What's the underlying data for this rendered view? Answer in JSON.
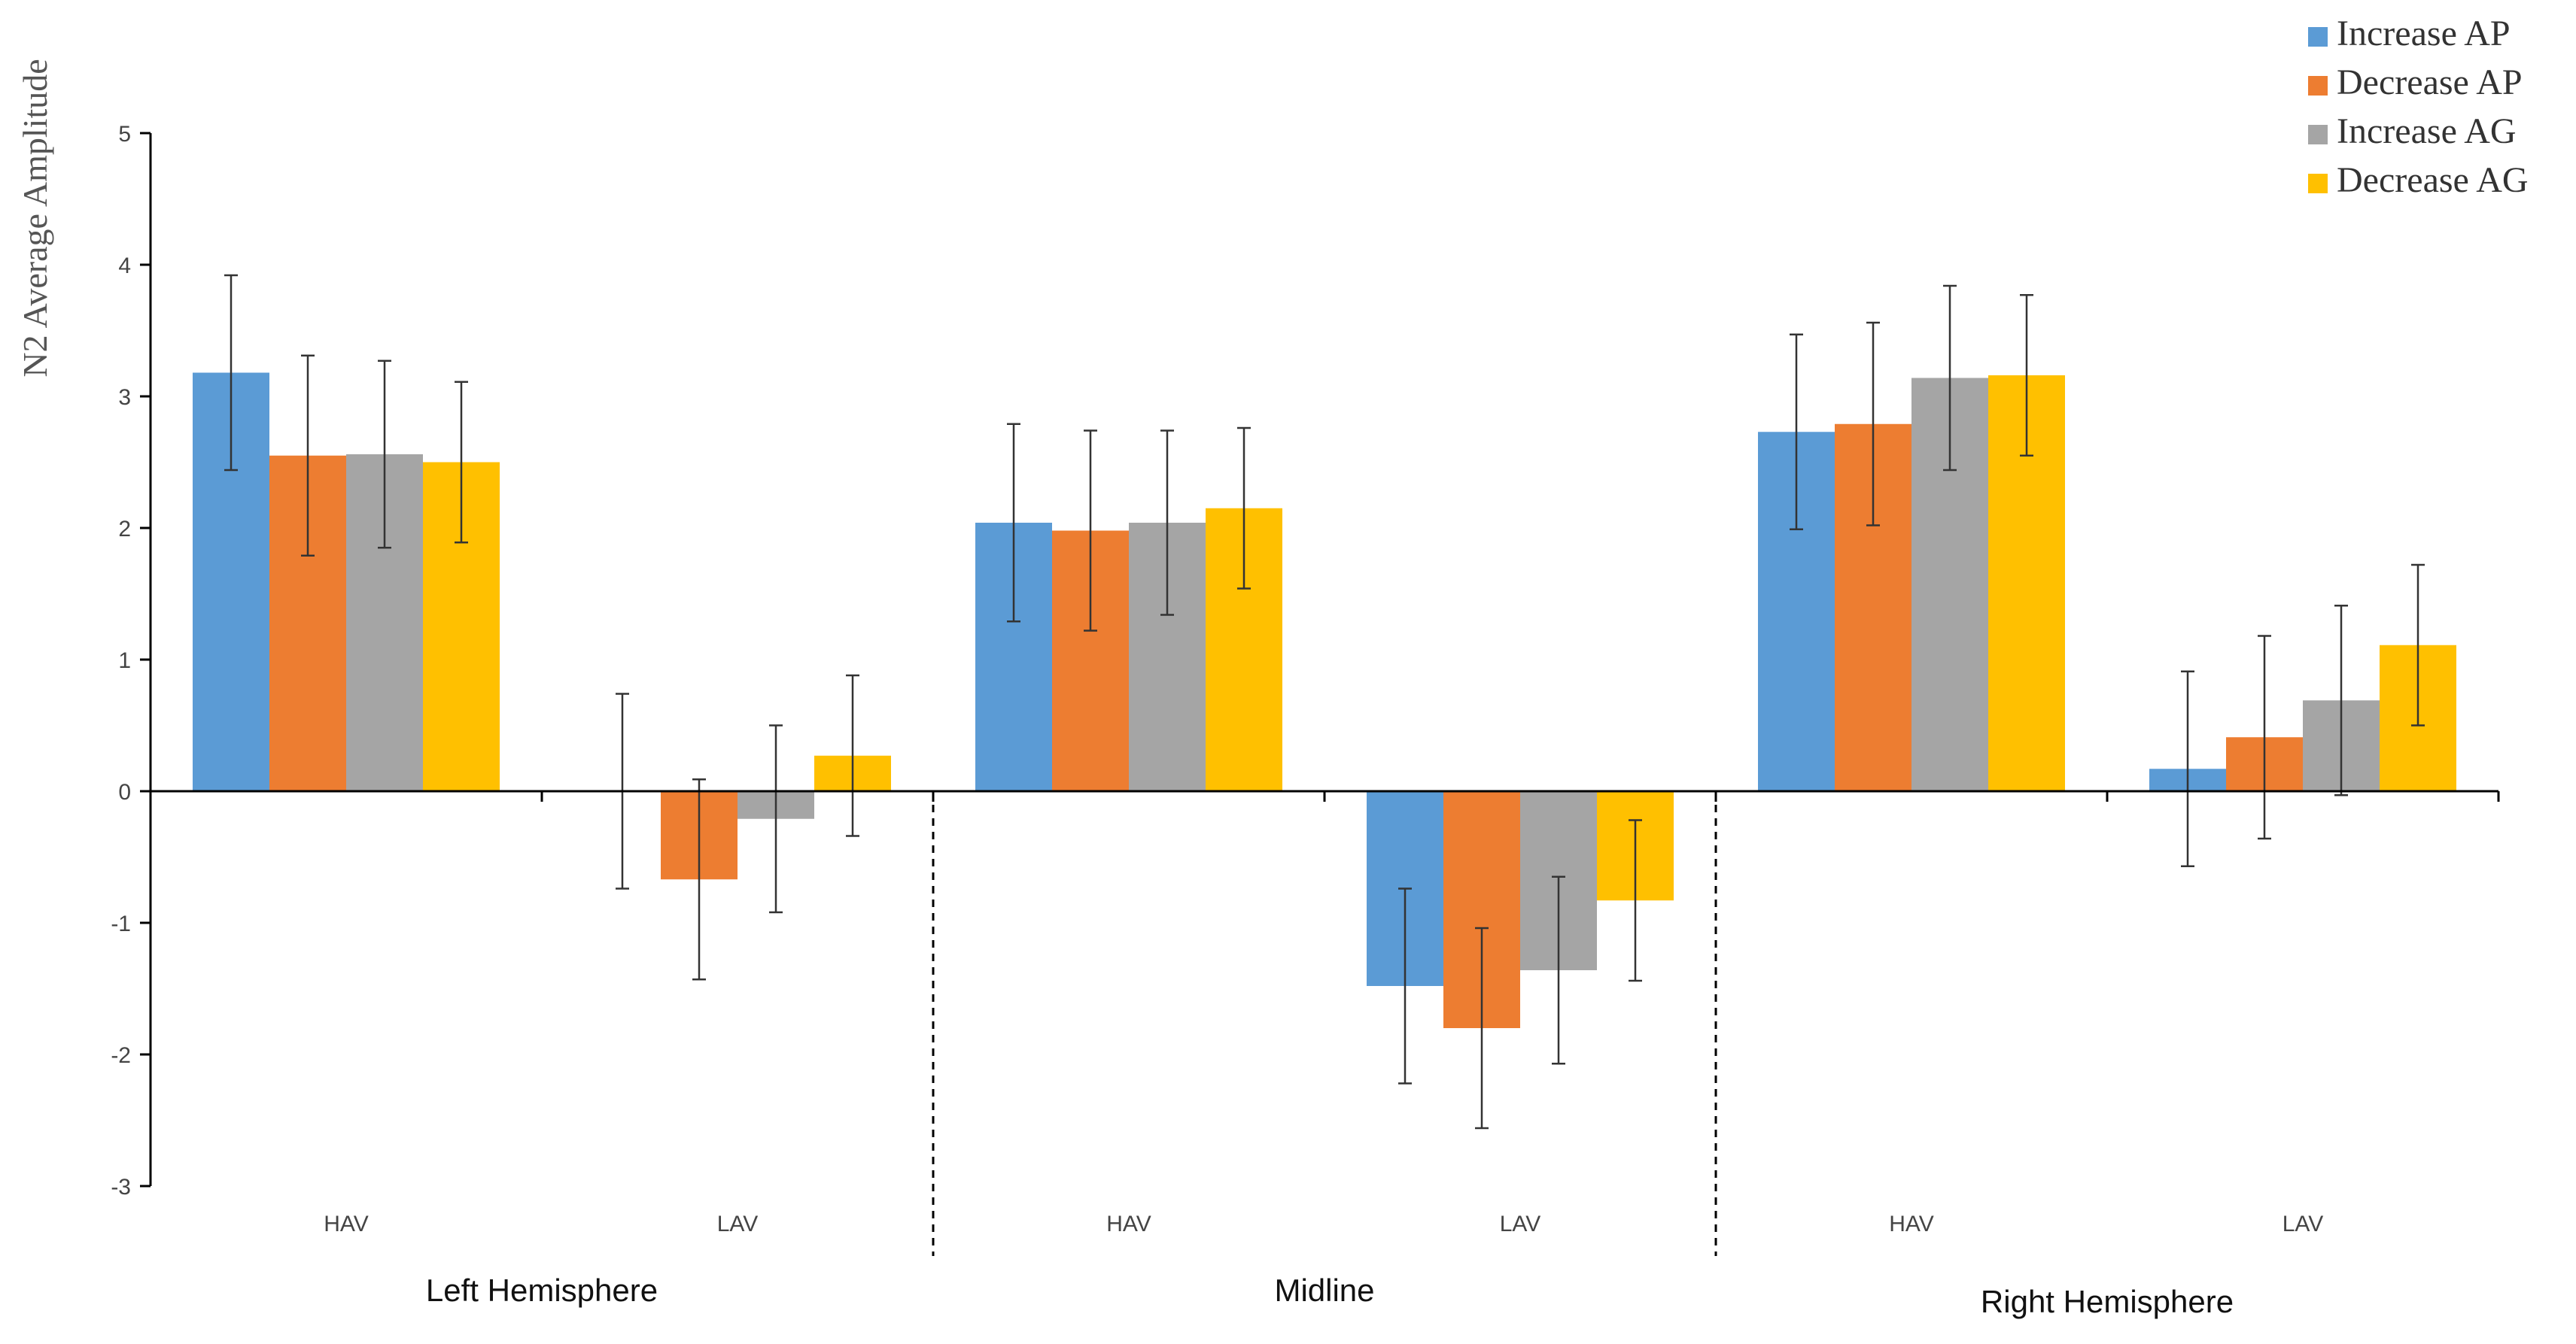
{
  "chart_data": {
    "type": "bar",
    "title": "",
    "ylabel": "N2 Average Amplitude",
    "xlabel": "",
    "ylim": [
      -3,
      5
    ],
    "yticks": [
      -3,
      -2,
      -1,
      0,
      1,
      2,
      3,
      4,
      5
    ],
    "categories": [
      "HAV",
      "LAV",
      "HAV",
      "LAV",
      "HAV",
      "LAV"
    ],
    "groups": [
      {
        "label": "Left Hemisphere",
        "categories": [
          0,
          1
        ]
      },
      {
        "label": "Midline",
        "categories": [
          2,
          3
        ]
      },
      {
        "label": "Right Hemisphere",
        "categories": [
          4,
          5
        ]
      }
    ],
    "legend_position": "top-right",
    "series": [
      {
        "name": "Increase AP",
        "color": "#5B9BD5",
        "values": [
          3.18,
          0.0,
          2.04,
          -1.48,
          2.73,
          0.17
        ],
        "errors": [
          0.74,
          0.74,
          0.75,
          0.74,
          0.74,
          0.74
        ]
      },
      {
        "name": "Decrease AP",
        "color": "#ED7D31",
        "values": [
          2.55,
          -0.67,
          1.98,
          -1.8,
          2.79,
          0.41
        ],
        "errors": [
          0.76,
          0.76,
          0.76,
          0.76,
          0.77,
          0.77
        ]
      },
      {
        "name": "Increase AG",
        "color": "#A5A5A5",
        "values": [
          2.56,
          -0.21,
          2.04,
          -1.36,
          3.14,
          0.69
        ],
        "errors": [
          0.71,
          0.71,
          0.7,
          0.71,
          0.7,
          0.72
        ]
      },
      {
        "name": "Decrease AG",
        "color": "#FFC000",
        "values": [
          2.5,
          0.27,
          2.15,
          -0.83,
          3.16,
          1.11
        ],
        "errors": [
          0.61,
          0.61,
          0.61,
          0.61,
          0.61,
          0.61
        ]
      }
    ]
  }
}
